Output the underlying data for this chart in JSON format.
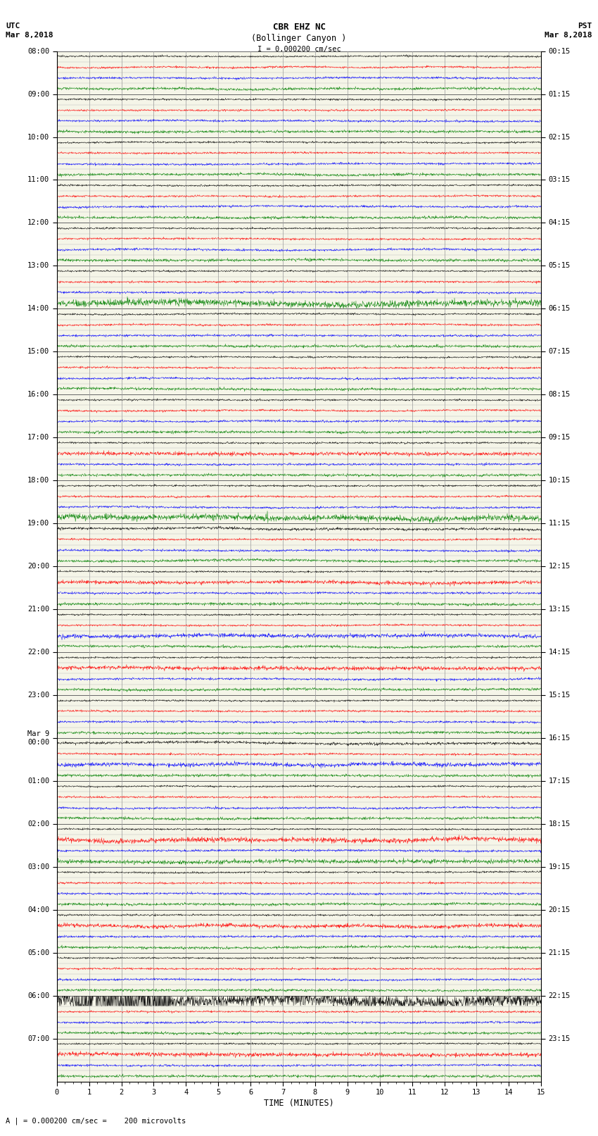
{
  "title_line1": "CBR EHZ NC",
  "title_line2": "(Bollinger Canyon )",
  "scale_text": "I = 0.000200 cm/sec",
  "footer_text": "A | = 0.000200 cm/sec =    200 microvolts",
  "xlabel": "TIME (MINUTES)",
  "left_label": "UTC",
  "left_date": "Mar 8,2018",
  "right_label": "PST",
  "right_date": "Mar 8,2018",
  "background_color": "#ffffff",
  "plot_bg_color": "#f5f5e8",
  "trace_colors": [
    "black",
    "red",
    "blue",
    "green"
  ],
  "utc_hour_labels": [
    "08:00",
    "09:00",
    "10:00",
    "11:00",
    "12:00",
    "13:00",
    "14:00",
    "15:00",
    "16:00",
    "17:00",
    "18:00",
    "19:00",
    "20:00",
    "21:00",
    "22:00",
    "23:00",
    "00:00",
    "01:00",
    "02:00",
    "03:00",
    "04:00",
    "05:00",
    "06:00",
    "07:00"
  ],
  "utc_mar9_index": 16,
  "pst_hour_labels": [
    "00:15",
    "01:15",
    "02:15",
    "03:15",
    "04:15",
    "05:15",
    "06:15",
    "07:15",
    "08:15",
    "09:15",
    "10:15",
    "11:15",
    "12:15",
    "13:15",
    "14:15",
    "15:15",
    "16:15",
    "17:15",
    "18:15",
    "19:15",
    "20:15",
    "21:15",
    "22:15",
    "23:15"
  ],
  "n_hours": 24,
  "traces_per_hour": 4,
  "n_minutes": 15,
  "x_ticks": [
    0,
    1,
    2,
    3,
    4,
    5,
    6,
    7,
    8,
    9,
    10,
    11,
    12,
    13,
    14,
    15
  ],
  "grid_color": "#999999",
  "hour_line_color": "#666666",
  "trace_line_color": "#bbbbbb",
  "noise_amplitude": 0.1,
  "noise_seed": 12345,
  "samples_per_row": 1800
}
